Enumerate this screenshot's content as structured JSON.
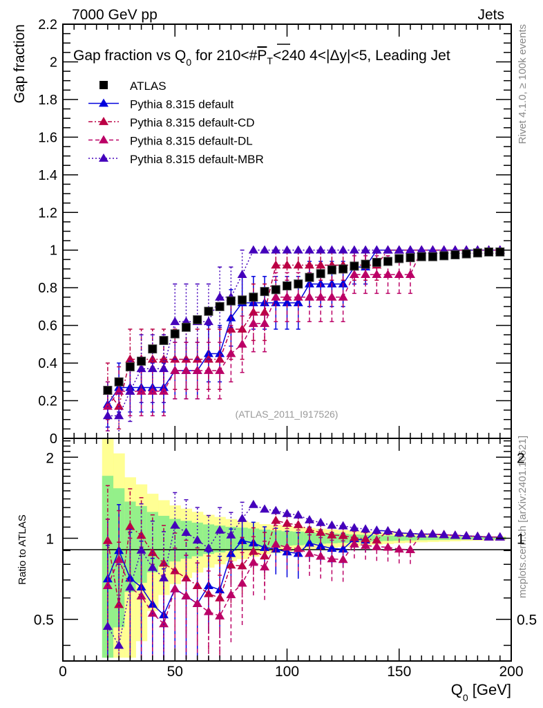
{
  "chart_data": {
    "type": "scatter",
    "top_left_label": "7000 GeV pp",
    "top_right_label": "Jets",
    "title_parts": {
      "pre": "Gap fraction vs Q",
      "sub": "0",
      "mid": " for 210<#",
      "overline": "P",
      "overline_sub": "T",
      "post": "<240  4<|Δy|<5, Leading Jet"
    },
    "ylabel": "Gap fraction",
    "ratio_ylabel": "Ratio to ATLAS",
    "xlabel_main": "Q",
    "xlabel_sub": "0",
    "xlabel_unit": " [GeV]",
    "analysis_label": "(ATLAS_2011_I917526)",
    "side_label_top": "Rivet 4.1.0, ≥ 100k events",
    "side_label_bottom": "mcplots.cern.ch [arXiv:2401.10621]",
    "xlim": [
      0,
      200
    ],
    "ylim": [
      0,
      2.2
    ],
    "ratio_ylim": [
      0.35,
      2.35
    ],
    "ratio_scale": "log",
    "x_ticks": [
      "0",
      "50",
      "100",
      "150",
      "200"
    ],
    "x_tick_values": [
      0,
      50,
      100,
      150,
      200
    ],
    "y_ticks": [
      "0",
      "0.2",
      "0.4",
      "0.6",
      "0.8",
      "1",
      "1.2",
      "1.4",
      "1.6",
      "1.8",
      "2",
      "2.2"
    ],
    "y_tick_values": [
      0,
      0.2,
      0.4,
      0.6,
      0.8,
      1.0,
      1.2,
      1.4,
      1.6,
      1.8,
      2.0,
      2.2
    ],
    "ratio_ticks": [
      "0.5",
      "1",
      "2"
    ],
    "ratio_tick_values": [
      0.5,
      1,
      2
    ],
    "legend_position": "top-left",
    "x": [
      20,
      25,
      30,
      35,
      40,
      45,
      50,
      55,
      60,
      65,
      70,
      75,
      80,
      85,
      90,
      95,
      100,
      105,
      110,
      115,
      120,
      125,
      130,
      135,
      140,
      145,
      150,
      155,
      160,
      165,
      170,
      175,
      180,
      185,
      190,
      195
    ],
    "data": {
      "name": "ATLAS",
      "color": "#000000",
      "values": [
        0.255,
        0.3,
        0.38,
        0.41,
        0.475,
        0.52,
        0.555,
        0.59,
        0.63,
        0.675,
        0.7,
        0.73,
        0.735,
        0.75,
        0.78,
        0.79,
        0.81,
        0.82,
        0.855,
        0.875,
        0.895,
        0.9,
        0.915,
        0.925,
        0.935,
        0.94,
        0.955,
        0.96,
        0.965,
        0.965,
        0.97,
        0.975,
        0.98,
        0.985,
        0.99,
        0.99
      ],
      "band_inner": [
        0.18,
        0.16,
        0.14,
        0.13,
        0.12,
        0.11,
        0.1,
        0.095,
        0.09,
        0.085,
        0.08,
        0.075,
        0.07,
        0.065,
        0.06,
        0.055,
        0.05,
        0.048,
        0.045,
        0.04,
        0.038,
        0.035,
        0.03,
        0.028,
        0.025,
        0.022,
        0.02,
        0.018,
        0.016,
        0.015,
        0.014,
        0.012,
        0.011,
        0.01,
        0.01,
        0.01
      ],
      "band_outer": [
        0.36,
        0.32,
        0.26,
        0.24,
        0.22,
        0.2,
        0.18,
        0.17,
        0.16,
        0.15,
        0.14,
        0.13,
        0.12,
        0.11,
        0.1,
        0.095,
        0.09,
        0.085,
        0.08,
        0.075,
        0.07,
        0.065,
        0.06,
        0.055,
        0.05,
        0.045,
        0.04,
        0.036,
        0.033,
        0.03,
        0.028,
        0.025,
        0.022,
        0.02,
        0.018,
        0.016
      ]
    },
    "series": [
      {
        "name": "Pythia 8.315 default",
        "color": "#0000dd",
        "line": "solid",
        "values": [
          0.18,
          0.27,
          0.27,
          0.27,
          0.27,
          0.27,
          0.36,
          0.36,
          0.36,
          0.45,
          0.45,
          0.64,
          0.72,
          0.72,
          0.72,
          0.72,
          0.72,
          0.72,
          0.82,
          0.82,
          0.82,
          0.82,
          0.91,
          0.91,
          1.0,
          1.0,
          1.0,
          1.0,
          1.0,
          1.0,
          1.0,
          1.0,
          1.0,
          1.0,
          1.0,
          1.0
        ],
        "errors": [
          0.12,
          0.13,
          0.13,
          0.13,
          0.13,
          0.13,
          0.15,
          0.15,
          0.15,
          0.15,
          0.15,
          0.15,
          0.14,
          0.14,
          0.14,
          0.14,
          0.14,
          0.14,
          0.12,
          0.12,
          0.12,
          0.12,
          0.09,
          0.09,
          0.0,
          0.0,
          0.0,
          0.0,
          0.0,
          0.0,
          0.0,
          0.0,
          0.0,
          0.0,
          0.0,
          0.0
        ]
      },
      {
        "name": "Pythia 8.315 default-CD",
        "color": "#bb0044",
        "line": "dashdot",
        "values": [
          0.25,
          0.17,
          0.42,
          0.42,
          0.42,
          0.42,
          0.42,
          0.42,
          0.42,
          0.42,
          0.42,
          0.58,
          0.58,
          0.67,
          0.67,
          0.92,
          0.92,
          0.92,
          0.92,
          0.92,
          0.92,
          0.92,
          0.92,
          0.92,
          0.92,
          1.0,
          1.0,
          1.0,
          1.0,
          1.0,
          1.0,
          1.0,
          1.0,
          1.0,
          1.0,
          1.0
        ],
        "errors": [
          0.15,
          0.12,
          0.16,
          0.16,
          0.16,
          0.16,
          0.16,
          0.16,
          0.16,
          0.16,
          0.16,
          0.16,
          0.16,
          0.15,
          0.15,
          0.08,
          0.08,
          0.08,
          0.08,
          0.08,
          0.08,
          0.08,
          0.08,
          0.08,
          0.08,
          0.0,
          0.0,
          0.0,
          0.0,
          0.0,
          0.0,
          0.0,
          0.0,
          0.0,
          0.0,
          0.0
        ]
      },
      {
        "name": "Pythia 8.315 default-DL",
        "color": "#bb0066",
        "line": "dashed",
        "values": [
          0.17,
          0.25,
          0.25,
          0.25,
          0.25,
          0.25,
          0.36,
          0.36,
          0.36,
          0.36,
          0.36,
          0.45,
          0.5,
          0.61,
          0.61,
          0.75,
          0.75,
          0.75,
          0.75,
          0.75,
          0.75,
          0.75,
          0.87,
          0.87,
          0.87,
          0.87,
          0.87,
          0.87,
          1.0,
          1.0,
          1.0,
          1.0,
          1.0,
          1.0,
          1.0,
          1.0
        ],
        "errors": [
          0.13,
          0.13,
          0.13,
          0.13,
          0.13,
          0.13,
          0.15,
          0.15,
          0.15,
          0.15,
          0.15,
          0.15,
          0.15,
          0.15,
          0.15,
          0.13,
          0.13,
          0.13,
          0.13,
          0.13,
          0.13,
          0.13,
          0.1,
          0.1,
          0.1,
          0.1,
          0.1,
          0.1,
          0.0,
          0.0,
          0.0,
          0.0,
          0.0,
          0.0,
          0.0,
          0.0
        ]
      },
      {
        "name": "Pythia 8.315 default-MBR",
        "color": "#4400bb",
        "line": "dotted",
        "values": [
          0.12,
          0.12,
          0.25,
          0.37,
          0.37,
          0.37,
          0.62,
          0.62,
          0.62,
          0.62,
          0.75,
          0.75,
          0.87,
          1.0,
          1.0,
          1.0,
          1.0,
          1.0,
          1.0,
          1.0,
          1.0,
          1.0,
          1.0,
          1.0,
          1.0,
          1.0,
          1.0,
          1.0,
          1.0,
          1.0,
          1.0,
          1.0,
          1.0,
          1.0,
          1.0,
          1.0
        ],
        "errors": [
          0.12,
          0.12,
          0.16,
          0.18,
          0.18,
          0.18,
          0.2,
          0.2,
          0.2,
          0.2,
          0.16,
          0.16,
          0.13,
          0.0,
          0.0,
          0.0,
          0.0,
          0.0,
          0.0,
          0.0,
          0.0,
          0.0,
          0.0,
          0.0,
          0.0,
          0.0,
          0.0,
          0.0,
          0.0,
          0.0,
          0.0,
          0.0,
          0.0,
          0.0,
          0.0,
          0.0
        ]
      }
    ]
  }
}
